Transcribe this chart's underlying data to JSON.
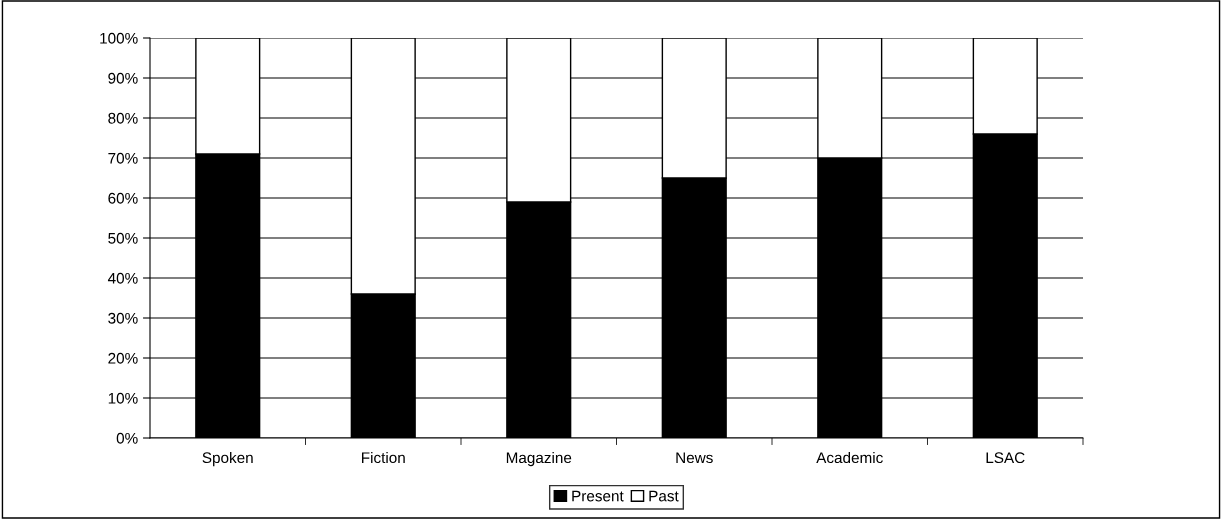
{
  "chart_data": {
    "type": "bar",
    "stacked": true,
    "categories": [
      "Spoken",
      "Fiction",
      "Magazine",
      "News",
      "Academic",
      "LSAC"
    ],
    "series": [
      {
        "name": "Present",
        "color": "#000000",
        "values": [
          71,
          36,
          59,
          65,
          70,
          76
        ]
      },
      {
        "name": "Past",
        "color": "#ffffff",
        "values": [
          29,
          64,
          41,
          35,
          30,
          24
        ]
      }
    ],
    "ylim": [
      0,
      100
    ],
    "yticks": [
      {
        "value": 0,
        "label": "0%"
      },
      {
        "value": 10,
        "label": "10%"
      },
      {
        "value": 20,
        "label": "20%"
      },
      {
        "value": 30,
        "label": "30%"
      },
      {
        "value": 40,
        "label": "40%"
      },
      {
        "value": 50,
        "label": "50%"
      },
      {
        "value": 60,
        "label": "60%"
      },
      {
        "value": 70,
        "label": "70%"
      },
      {
        "value": 80,
        "label": "80%"
      },
      {
        "value": 90,
        "label": "90%"
      },
      {
        "value": 100,
        "label": "100%"
      }
    ],
    "grid": "y",
    "legend": "bottom"
  }
}
